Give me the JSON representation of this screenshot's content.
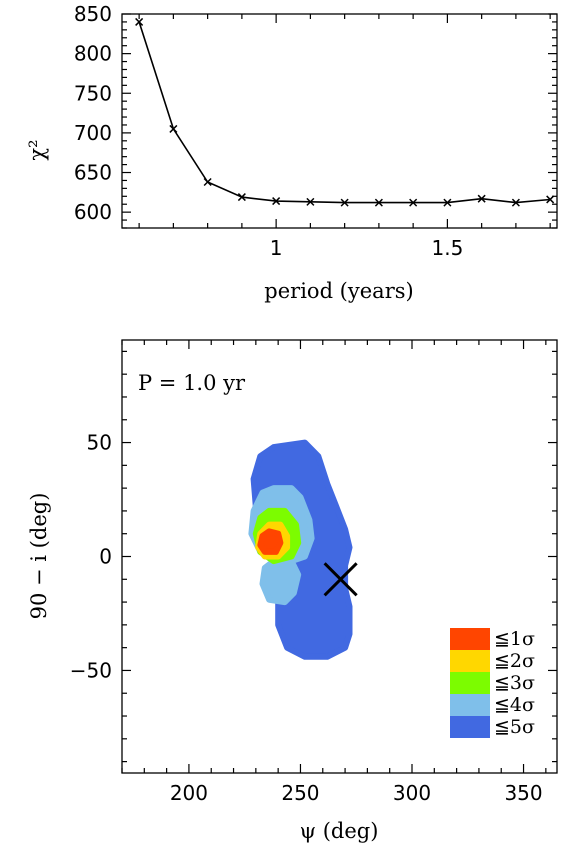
{
  "chart_data": [
    {
      "type": "line",
      "xlabel": "period (years)",
      "ylabel": "χ²",
      "xlim": [
        0.55,
        1.82
      ],
      "ylim": [
        580,
        850
      ],
      "x_ticks": [
        1,
        1.5
      ],
      "y_ticks": [
        600,
        650,
        700,
        750,
        800,
        850
      ],
      "marker": "x",
      "series": [
        {
          "x": [
            0.6,
            0.7,
            0.8,
            0.9,
            1.0,
            1.1,
            1.2,
            1.3,
            1.4,
            1.5,
            1.6,
            1.7,
            1.8
          ],
          "y": [
            840,
            705,
            638,
            619,
            614,
            613,
            612,
            612,
            612,
            612,
            617,
            612,
            616
          ]
        }
      ]
    },
    {
      "type": "scatter",
      "xlabel": "ψ (deg)",
      "ylabel": "90 − i  (deg)",
      "xlim": [
        170,
        365
      ],
      "ylim": [
        -95,
        95
      ],
      "x_ticks": [
        200,
        250,
        300,
        350
      ],
      "y_ticks": [
        -50,
        0,
        50
      ],
      "annotation": "P = 1.0 yr",
      "true_value": {
        "x": 268,
        "y": -10,
        "marker": "X"
      },
      "regions": [
        {
          "label": "≦5σ",
          "color": "#4169e1",
          "polygon": [
            [
              238,
              48
            ],
            [
              252,
              50
            ],
            [
              258,
              44
            ],
            [
              262,
              32
            ],
            [
              266,
              22
            ],
            [
              270,
              12
            ],
            [
              272,
              4
            ],
            [
              270,
              -4
            ],
            [
              270,
              -14
            ],
            [
              272,
              -22
            ],
            [
              272,
              -34
            ],
            [
              270,
              -40
            ],
            [
              262,
              -44
            ],
            [
              252,
              -44
            ],
            [
              244,
              -40
            ],
            [
              240,
              -30
            ],
            [
              240,
              -18
            ],
            [
              244,
              -8
            ],
            [
              240,
              2
            ],
            [
              234,
              10
            ],
            [
              230,
              22
            ],
            [
              229,
              34
            ],
            [
              232,
              44
            ]
          ]
        },
        {
          "label": "≦4σ",
          "color": "#7fbfea",
          "polygon": [
            [
              238,
              30
            ],
            [
              246,
              30
            ],
            [
              250,
              26
            ],
            [
              254,
              16
            ],
            [
              255,
              8
            ],
            [
              252,
              0
            ],
            [
              246,
              -2
            ],
            [
              238,
              -2
            ],
            [
              232,
              2
            ],
            [
              228,
              10
            ],
            [
              229,
              20
            ],
            [
              233,
              28
            ]
          ]
        },
        {
          "label": "≦4σ",
          "color": "#7fbfea",
          "polygon": [
            [
              238,
              -2
            ],
            [
              246,
              -2
            ],
            [
              249,
              -8
            ],
            [
              247,
              -16
            ],
            [
              243,
              -20
            ],
            [
              236,
              -19
            ],
            [
              233,
              -12
            ],
            [
              234,
              -5
            ]
          ]
        },
        {
          "label": "≦3σ",
          "color": "#7cfc00",
          "polygon": [
            [
              236,
              20
            ],
            [
              243,
              20
            ],
            [
              248,
              14
            ],
            [
              249,
              6
            ],
            [
              246,
              0
            ],
            [
              238,
              -2
            ],
            [
              232,
              2
            ],
            [
              230,
              10
            ],
            [
              232,
              17
            ]
          ]
        },
        {
          "label": "≦2σ",
          "color": "#ffd700",
          "polygon": [
            [
              236,
              14
            ],
            [
              241,
              14
            ],
            [
              244,
              9
            ],
            [
              244,
              4
            ],
            [
              240,
              0
            ],
            [
              234,
              0
            ],
            [
              231,
              4
            ],
            [
              232,
              10
            ]
          ]
        },
        {
          "label": "≦1σ",
          "color": "#ff4500",
          "polygon": [
            [
              236,
              11
            ],
            [
              240,
              10
            ],
            [
              241,
              6
            ],
            [
              239,
              2
            ],
            [
              234,
              2
            ],
            [
              232,
              5
            ],
            [
              233,
              9
            ]
          ]
        }
      ],
      "legend": {
        "placement": "bottom-right",
        "entries": [
          {
            "label": "≦1σ",
            "color": "#ff4500"
          },
          {
            "label": "≦2σ",
            "color": "#ffd700"
          },
          {
            "label": "≦3σ",
            "color": "#7cfc00"
          },
          {
            "label": "≦4σ",
            "color": "#7fbfea"
          },
          {
            "label": "≦5σ",
            "color": "#4169e1"
          }
        ]
      }
    }
  ]
}
